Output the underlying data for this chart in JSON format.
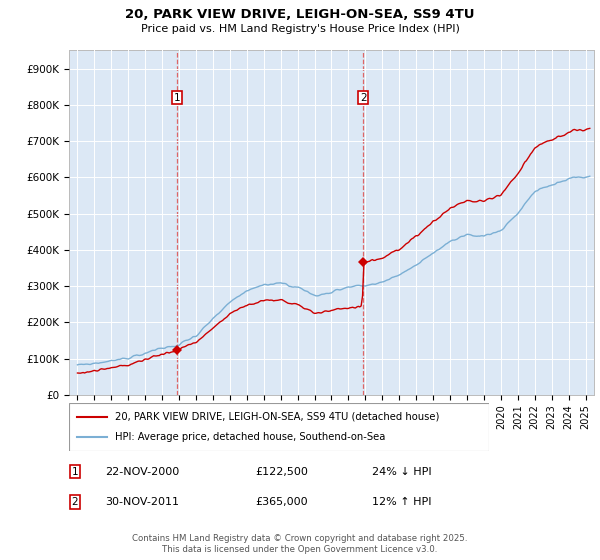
{
  "title_line1": "20, PARK VIEW DRIVE, LEIGH-ON-SEA, SS9 4TU",
  "title_line2": "Price paid vs. HM Land Registry's House Price Index (HPI)",
  "ylim": [
    0,
    950000
  ],
  "yticks": [
    0,
    100000,
    200000,
    300000,
    400000,
    500000,
    600000,
    700000,
    800000,
    900000
  ],
  "ytick_labels": [
    "£0",
    "£100K",
    "£200K",
    "£300K",
    "£400K",
    "£500K",
    "£600K",
    "£700K",
    "£800K",
    "£900K"
  ],
  "sale1_date": "22-NOV-2000",
  "sale1_price_str": "£122,500",
  "sale1_price": 122500,
  "sale1_hpi_pct": "24% ↓ HPI",
  "sale2_date": "30-NOV-2011",
  "sale2_price_str": "£365,000",
  "sale2_price": 365000,
  "sale2_hpi_pct": "12% ↑ HPI",
  "legend_label_property": "20, PARK VIEW DRIVE, LEIGH-ON-SEA, SS9 4TU (detached house)",
  "legend_label_hpi": "HPI: Average price, detached house, Southend-on-Sea",
  "footer": "Contains HM Land Registry data © Crown copyright and database right 2025.\nThis data is licensed under the Open Government Licence v3.0.",
  "property_color": "#cc0000",
  "hpi_color": "#7bafd4",
  "vline_color": "#dd6666",
  "shading_color": "#dce8f5",
  "background_color": "#dce8f5",
  "marker_color": "#cc0000",
  "sale1_x": 2000.875,
  "sale2_x": 2011.875,
  "xlim_left": 1994.5,
  "xlim_right": 2025.5
}
